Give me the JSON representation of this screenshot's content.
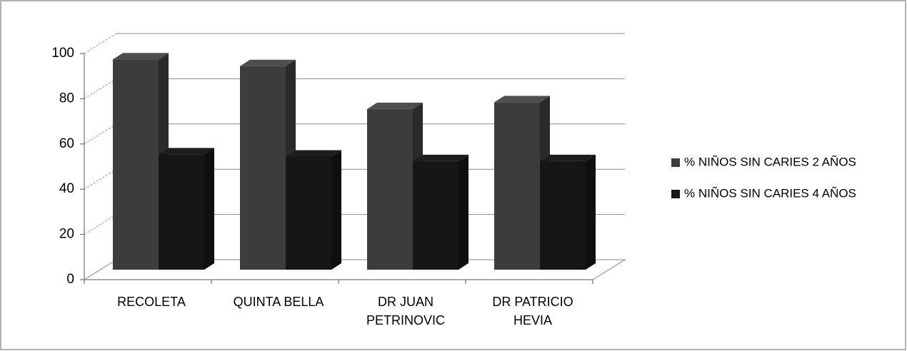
{
  "chart_data": {
    "type": "bar3d",
    "categories": [
      "RECOLETA",
      "QUINTA BELLA",
      "DR JUAN PETRINOVIC",
      "DR PATRICIO HEVIA"
    ],
    "series": [
      {
        "name": "% NIÑOS SIN CARIES 2 AÑOS",
        "color": "#3c3c3c",
        "values": [
          93,
          90,
          71,
          74
        ]
      },
      {
        "name": "% NIÑOS SIN CARIES 4 AÑOS",
        "color": "#161616",
        "values": [
          51,
          50,
          48,
          48
        ]
      }
    ],
    "ylim": [
      0,
      100
    ],
    "yticks": [
      0,
      20,
      40,
      60,
      80,
      100
    ],
    "grid": true,
    "legend": "right"
  }
}
